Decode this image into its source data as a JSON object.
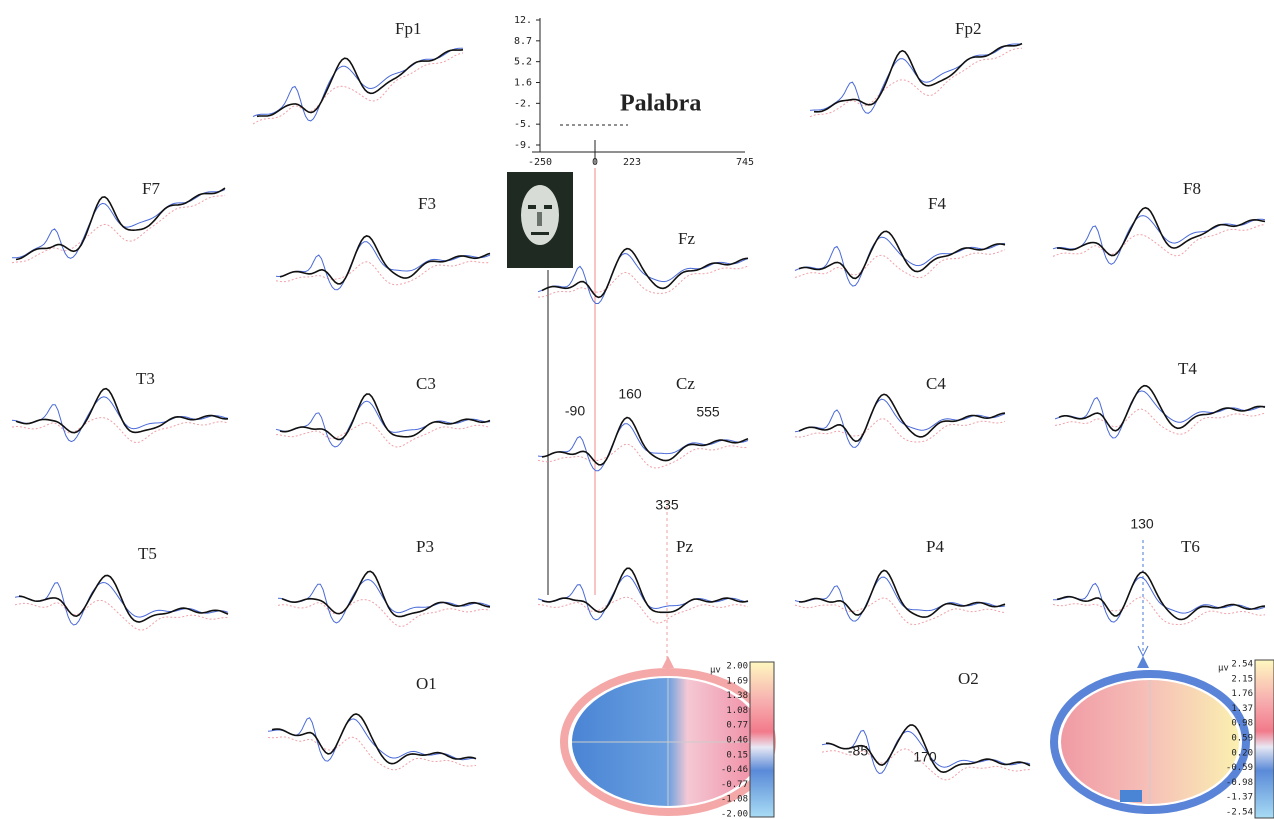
{
  "figure": {
    "electrodes": [
      "Fp1",
      "Fp2",
      "F7",
      "F3",
      "Fz",
      "F4",
      "F8",
      "T3",
      "C3",
      "Cz",
      "C4",
      "T4",
      "T5",
      "P3",
      "Pz",
      "P4",
      "T6",
      "O1",
      "O2"
    ],
    "scale": {
      "yticks": [
        "12.",
        "8.7",
        "5.2",
        "1.6",
        "-2.",
        "-5.",
        "-9."
      ],
      "xticks": [
        "-250",
        "0",
        "223",
        "745"
      ],
      "condition": "Palabra"
    },
    "annotations": [
      "-90",
      "160",
      "555",
      "335",
      "130",
      "-85",
      "170"
    ],
    "maps": [
      {
        "unit": "μv",
        "labels": [
          "2.00",
          "1.69",
          "1.38",
          "1.08",
          "0.77",
          "0.46",
          "0.15",
          "-0.46",
          "-0.77",
          "-1.08",
          "-2.00"
        ]
      },
      {
        "unit": "μv",
        "labels": [
          "2.54",
          "2.15",
          "1.76",
          "1.37",
          "0.98",
          "0.59",
          "0.20",
          "-0.59",
          "-0.98",
          "-1.37",
          "-2.54"
        ]
      }
    ]
  }
}
